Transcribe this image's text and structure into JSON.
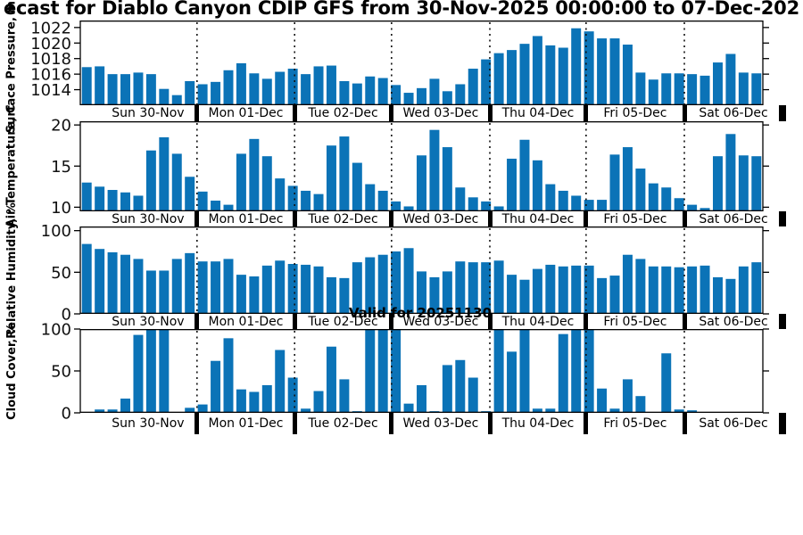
{
  "title": "ecast for Diablo Canyon CDIP GFS from 30-Nov-2025 00:00:00 to 07-Dec-202",
  "annotation": "Valid for 20251130",
  "colors": {
    "bar": "#0B73B7",
    "axis": "#000000",
    "day_separator": "#000000"
  },
  "x_day_labels": [
    "Sun 30-Nov",
    "Mon 01-Dec",
    "Tue 02-Dec",
    "Wed 03-Dec",
    "Thu 04-Dec",
    "Fri 05-Dec",
    "Sat 06-Dec"
  ],
  "chart_data": [
    {
      "type": "bar",
      "ylabel": "Surface Pressure, mb",
      "yticks": [
        1014,
        1016,
        1018,
        1020,
        1022
      ],
      "ylim": [
        1012,
        1022.9
      ],
      "values": [
        1016.9,
        1017.0,
        1016.0,
        1016.0,
        1016.2,
        1016.0,
        1014.1,
        1013.3,
        1015.1,
        1014.7,
        1015.0,
        1016.5,
        1017.4,
        1016.1,
        1015.4,
        1016.3,
        1016.7,
        1016.0,
        1017.0,
        1017.1,
        1015.1,
        1014.8,
        1015.7,
        1015.5,
        1014.6,
        1013.6,
        1014.2,
        1015.4,
        1013.8,
        1014.7,
        1016.7,
        1017.9,
        1018.7,
        1019.1,
        1019.9,
        1020.9,
        1019.7,
        1019.4,
        1021.9,
        1021.5,
        1020.6,
        1020.6,
        1019.8,
        1016.2,
        1015.3,
        1016.1,
        1016.1,
        1016.0,
        1015.8,
        1017.5,
        1018.6,
        1016.2,
        1016.1
      ]
    },
    {
      "type": "bar",
      "ylabel": "Air Temperature, C",
      "yticks": [
        10,
        15,
        20
      ],
      "ylim": [
        9.5,
        20.45
      ],
      "values": [
        13.0,
        12.5,
        12.1,
        11.8,
        11.4,
        16.9,
        18.5,
        16.5,
        13.7,
        11.9,
        10.8,
        10.3,
        16.5,
        18.3,
        16.2,
        13.5,
        12.6,
        12.0,
        11.6,
        17.5,
        18.6,
        15.4,
        12.8,
        12.0,
        10.7,
        10.1,
        16.3,
        19.4,
        17.3,
        12.4,
        11.2,
        10.7,
        10.1,
        15.9,
        18.2,
        15.7,
        12.8,
        12.0,
        11.4,
        10.9,
        10.9,
        16.4,
        17.3,
        14.7,
        12.9,
        12.4,
        11.1,
        10.3,
        9.9,
        16.2,
        18.9,
        16.3,
        16.2
      ]
    },
    {
      "type": "bar",
      "ylabel": "Relative Humidity, %",
      "yticks": [
        0,
        50,
        100
      ],
      "ylim": [
        0,
        105
      ],
      "values": [
        84,
        78,
        74,
        71,
        66,
        52,
        52,
        66,
        73,
        63,
        63,
        66,
        47,
        45,
        58,
        64,
        60,
        59,
        57,
        44,
        43,
        62,
        68,
        71,
        75,
        79,
        51,
        44,
        51,
        63,
        62,
        62,
        64,
        47,
        41,
        54,
        59,
        57,
        58,
        58,
        43,
        46,
        71,
        66,
        57,
        57,
        56,
        57,
        58,
        44,
        42,
        57,
        62
      ]
    },
    {
      "type": "bar",
      "ylabel": "Cloud Cover, %",
      "yticks": [
        0,
        50,
        100
      ],
      "ylim": [
        0,
        100
      ],
      "values": [
        0,
        4,
        4,
        17,
        93,
        100,
        100,
        0,
        6,
        10,
        62,
        89,
        28,
        25,
        33,
        75,
        42,
        5,
        26,
        79,
        40,
        2,
        100,
        100,
        100,
        11,
        33,
        2,
        57,
        63,
        42,
        2,
        100,
        73,
        100,
        5,
        5,
        94,
        100,
        100,
        29,
        5,
        40,
        20,
        0,
        71,
        4,
        3,
        0,
        0,
        0,
        0,
        0
      ]
    }
  ]
}
